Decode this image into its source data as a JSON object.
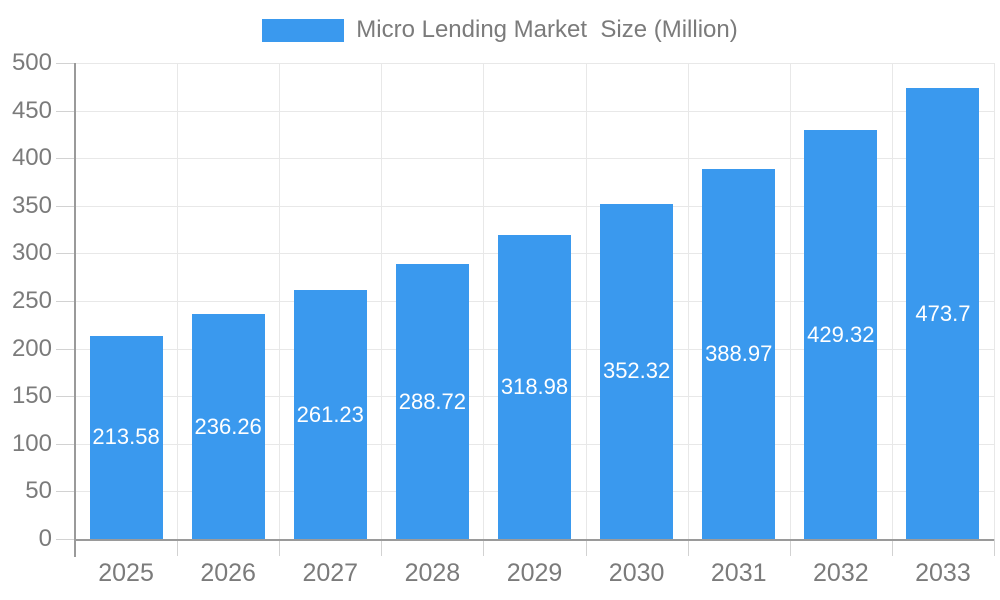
{
  "legend": {
    "label": "Micro Lending Market  Size (Million)"
  },
  "colors": {
    "bar": "#3A99EE",
    "bar_label": "#FFFFFF",
    "grid": "#E8E8E8",
    "axis": "#9A9A9A",
    "tick": "#D2D2D2",
    "axis_label": "#7B7B7B",
    "background": "#FFFFFF"
  },
  "chart_data": {
    "type": "bar",
    "title": "Micro Lending Market  Size (Million)",
    "categories": [
      "2025",
      "2026",
      "2027",
      "2028",
      "2029",
      "2030",
      "2031",
      "2032",
      "2033"
    ],
    "series": [
      {
        "name": "Micro Lending Market  Size (Million)",
        "values": [
          213.58,
          236.26,
          261.23,
          288.72,
          318.98,
          352.32,
          388.97,
          429.32,
          473.7
        ],
        "value_labels": [
          "213.58",
          "236.26",
          "261.23",
          "288.72",
          "318.98",
          "352.32",
          "388.97",
          "429.32",
          "473.7"
        ]
      }
    ],
    "xlabel": "",
    "ylabel": "",
    "ylim": [
      0,
      500
    ],
    "y_ticks": [
      0,
      50,
      100,
      150,
      200,
      250,
      300,
      350,
      400,
      450,
      500
    ],
    "grid": true,
    "legend_position": "top",
    "bar_label_position": "inside-center",
    "value_label_color": "#FFFFFF"
  }
}
